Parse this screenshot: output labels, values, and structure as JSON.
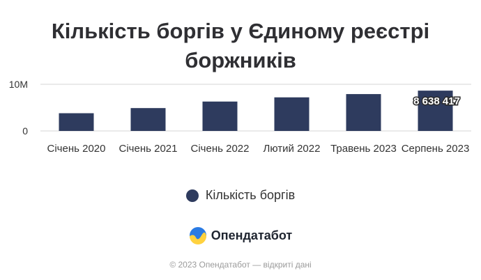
{
  "chart_data": {
    "type": "bar",
    "title": "Кількість боргів у Єдиному реєстрі боржників",
    "categories": [
      "Січень 2020",
      "Січень 2021",
      "Січень 2022",
      "Лютий 2022",
      "Травень 2023",
      "Серпень 2023"
    ],
    "series": [
      {
        "name": "Кількість боргів",
        "values": [
          3800000,
          4900000,
          6300000,
          7200000,
          7900000,
          8638417
        ]
      }
    ],
    "data_labels": [
      "",
      "",
      "",
      "",
      "",
      "8 638 417"
    ],
    "yticks": [
      "0",
      "10M"
    ],
    "ylim": [
      0,
      10000000
    ],
    "xlabel": "",
    "ylabel": "",
    "legend_position": "bottom",
    "grid": "horizontal",
    "colors": {
      "bar": "#2e3b5e",
      "grid": "#d6d6d6"
    }
  },
  "brand": {
    "name": "Опендатабот",
    "logo_icon": "opendatabot-logo-icon"
  },
  "footer": "© 2023 Опендатабот — відкриті дані"
}
